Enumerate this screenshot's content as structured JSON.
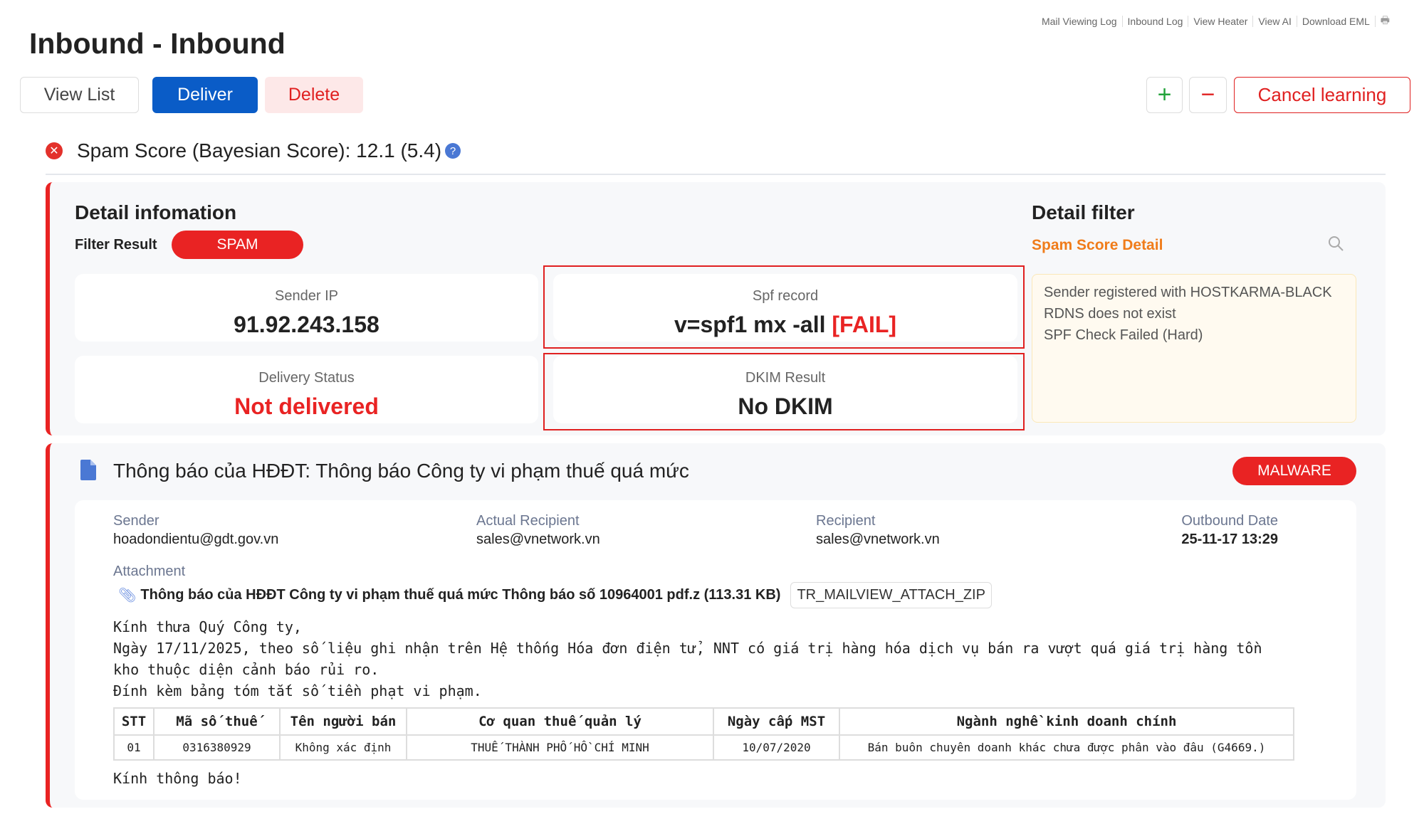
{
  "top_links": [
    "Mail Viewing Log",
    "Inbound Log",
    "View Heater",
    "View AI",
    "Download EML"
  ],
  "top_icon": "printer-icon",
  "title": "Inbound - Inbound",
  "toolbar": {
    "view_list": "View List",
    "deliver": "Deliver",
    "delete": "Delete",
    "plus": "+",
    "minus": "−",
    "cancel": "Cancel learning"
  },
  "spam_score": {
    "label": "Spam Score (Bayesian Score):",
    "value": "12.1 (5.4)",
    "help": "?"
  },
  "detail": {
    "heading": "Detail infomation",
    "filter_label": "Filter Result",
    "filter_value": "SPAM",
    "sender_ip_label": "Sender IP",
    "sender_ip": "91.92.243.158",
    "spf_label": "Spf record",
    "spf_value": "v=spf1 mx -all",
    "spf_status": "[FAIL]",
    "delivery_label": "Delivery Status",
    "delivery_value": "Not delivered",
    "dkim_label": "DKIM Result",
    "dkim_value": "No DKIM"
  },
  "filter": {
    "heading": "Detail filter",
    "sub": "Spam Score Detail",
    "items": [
      "Sender registered with HOSTKARMA-BLACK",
      "RDNS does not exist",
      "SPF Check Failed (Hard)"
    ]
  },
  "mail": {
    "subject": "Thông báo của HĐĐT: Thông báo Công ty vi phạm thuế quá mức",
    "badge": "MALWARE",
    "sender_label": "Sender",
    "sender": "hoadondientu@gdt.gov.vn",
    "actual_label": "Actual Recipient",
    "actual": "sales@vnetwork.vn",
    "recipient_label": "Recipient",
    "recipient": "sales@vnetwork.vn",
    "date_label": "Outbound Date",
    "date": "25-11-17 13:29",
    "attachment_label": "Attachment",
    "attachment": "Thông báo của HĐĐT Công ty vi phạm thuế quá mức Thông báo số 10964001 pdf.z (113.31 KB)",
    "attachment_tag": "TR_MAILVIEW_ATTACH_ZIP",
    "body": [
      "Kính thưa Quý Công ty,",
      "Ngày 17/11/2025, theo số liệu ghi nhận trên Hệ thống Hóa đơn điện tử, NNT có giá trị hàng hóa dịch vụ bán ra vượt quá giá trị hàng tồn",
      "kho thuộc diện cảnh báo rủi ro.",
      "Đính kèm bảng tóm tắt số tiền phạt vi phạm."
    ],
    "table": {
      "headers": [
        "STT",
        "Mã số thuế",
        "Tên người bán",
        "Cơ quan thuế quản lý",
        "Ngày cấp MST",
        "Ngành nghề kinh doanh chính"
      ],
      "rows": [
        [
          "01",
          "0316380929",
          "Không xác định",
          "THUẾ THÀNH PHỐ HỒ CHÍ MINH",
          "10/07/2020",
          "Bán buôn chuyên doanh khác chưa được phân vào đâu (G4669.)"
        ]
      ]
    },
    "closing": "Kính thông báo!"
  },
  "colors": {
    "accent": "#0a5cc7",
    "danger": "#e92323",
    "orange": "#f07c1a"
  }
}
